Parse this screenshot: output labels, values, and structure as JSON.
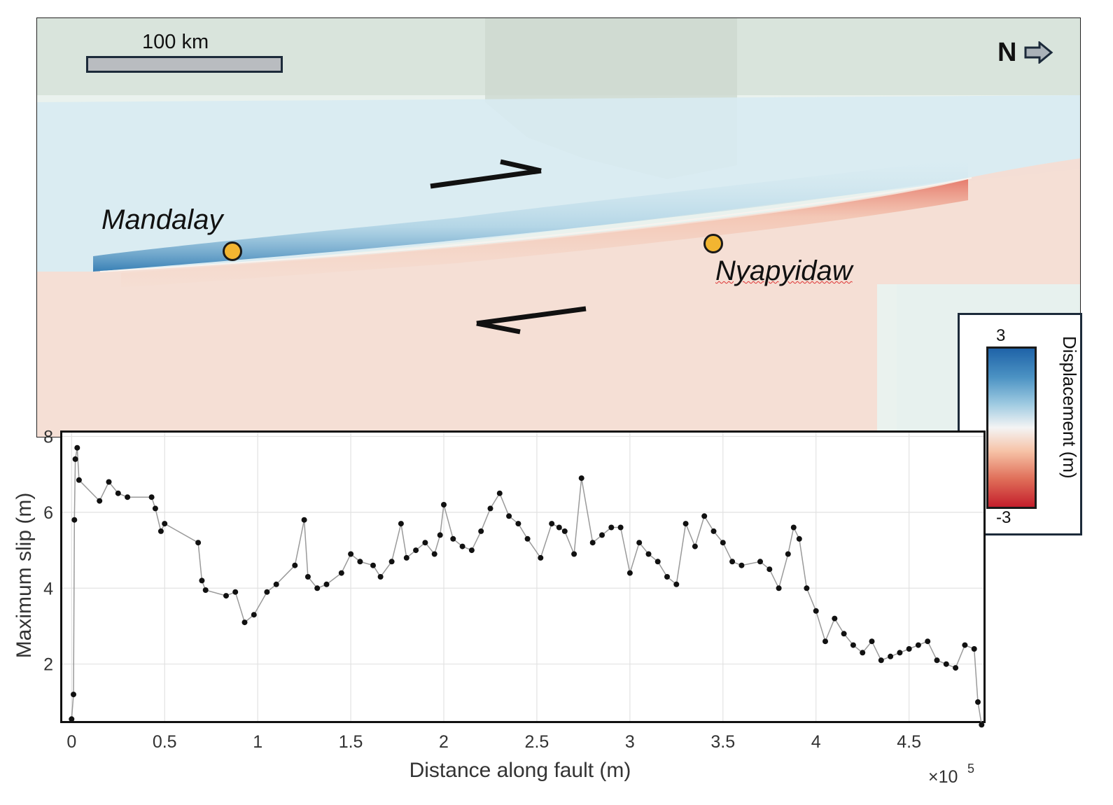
{
  "map": {
    "scale_label": "100 km",
    "north_label": "N",
    "cities": [
      {
        "name": "Mandalay"
      },
      {
        "name": "Nyapyidaw"
      }
    ],
    "colorbar": {
      "title": "Displacement (m)",
      "max_label": "3",
      "min_label": "-3",
      "colors": [
        "#1f63a8",
        "#9ecae1",
        "#f4f4f4",
        "#f6c2a6",
        "#c41f2c"
      ]
    }
  },
  "chart_data": {
    "type": "line",
    "title": "",
    "xlabel": "Distance along fault (m)",
    "ylabel": "Maximum slip (m)",
    "x_multiplier_base": "×10",
    "x_multiplier_exp": "5",
    "xlim": [
      -0.05,
      4.9
    ],
    "ylim": [
      0.5,
      8.1
    ],
    "x_units_note": "x values in units of 1e5 m",
    "xticks": [
      "0",
      "0.5",
      "1",
      "1.5",
      "2",
      "2.5",
      "3",
      "3.5",
      "4",
      "4.5"
    ],
    "yticks": [
      "2",
      "4",
      "6",
      "8"
    ],
    "grid": true,
    "series": [
      {
        "name": "Maximum slip",
        "color": "#111111",
        "x": [
          0,
          0.01,
          0.015,
          0.02,
          0.03,
          0.04,
          0.15,
          0.2,
          0.25,
          0.3,
          0.43,
          0.45,
          0.48,
          0.5,
          0.68,
          0.7,
          0.72,
          0.83,
          0.88,
          0.93,
          0.98,
          1.05,
          1.1,
          1.2,
          1.25,
          1.27,
          1.32,
          1.37,
          1.45,
          1.5,
          1.55,
          1.62,
          1.66,
          1.72,
          1.77,
          1.8,
          1.85,
          1.9,
          1.95,
          1.98,
          2.0,
          2.05,
          2.1,
          2.15,
          2.2,
          2.25,
          2.3,
          2.35,
          2.4,
          2.45,
          2.52,
          2.58,
          2.62,
          2.65,
          2.7,
          2.74,
          2.8,
          2.85,
          2.9,
          2.95,
          3.0,
          3.05,
          3.1,
          3.15,
          3.2,
          3.25,
          3.3,
          3.35,
          3.4,
          3.45,
          3.5,
          3.55,
          3.6,
          3.7,
          3.75,
          3.8,
          3.85,
          3.88,
          3.91,
          3.95,
          4.0,
          4.05,
          4.1,
          4.15,
          4.2,
          4.25,
          4.3,
          4.35,
          4.4,
          4.45,
          4.5,
          4.55,
          4.6,
          4.65,
          4.7,
          4.75,
          4.8,
          4.85,
          4.87,
          4.89
        ],
        "y": [
          0.55,
          1.2,
          5.8,
          7.4,
          7.7,
          6.85,
          6.3,
          6.8,
          6.5,
          6.4,
          6.4,
          6.1,
          5.5,
          5.7,
          5.2,
          4.2,
          3.95,
          3.8,
          3.9,
          3.1,
          3.3,
          3.9,
          4.1,
          4.6,
          5.8,
          4.3,
          4.0,
          4.1,
          4.4,
          4.9,
          4.7,
          4.6,
          4.3,
          4.7,
          5.7,
          4.8,
          5.0,
          5.2,
          4.9,
          5.4,
          6.2,
          5.3,
          5.1,
          5.0,
          5.5,
          6.1,
          6.5,
          5.9,
          5.7,
          5.3,
          4.8,
          5.7,
          5.6,
          5.5,
          4.9,
          6.9,
          5.2,
          5.4,
          5.6,
          5.6,
          4.4,
          5.2,
          4.9,
          4.7,
          4.3,
          4.1,
          5.7,
          5.1,
          5.9,
          5.5,
          5.2,
          4.7,
          4.6,
          4.7,
          4.5,
          4.0,
          4.9,
          5.6,
          5.3,
          4.0,
          3.4,
          2.6,
          3.2,
          2.8,
          2.5,
          2.3,
          2.6,
          2.1,
          2.2,
          2.3,
          2.4,
          2.5,
          2.6,
          2.1,
          2.0,
          1.9,
          2.5,
          2.4,
          1.0,
          0.4
        ]
      }
    ]
  }
}
